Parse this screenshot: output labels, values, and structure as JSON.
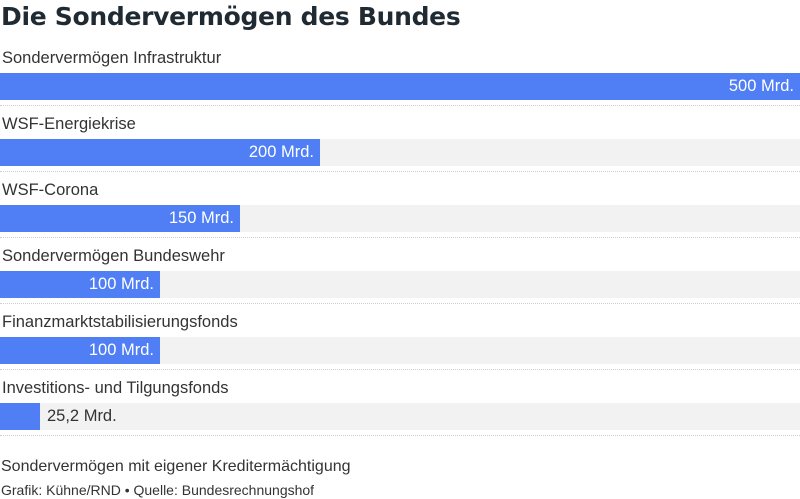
{
  "chart_data": {
    "type": "bar",
    "orientation": "horizontal",
    "title": "Die Sondervermögen des Bundes",
    "categories": [
      "Sondervermögen Infrastruktur",
      "WSF-Energiekrise",
      "WSF-Corona",
      "Sondervermögen Bundeswehr",
      "Finanzmarktstabilisierungsfonds",
      "Investitions- und Tilgungsfonds"
    ],
    "values": [
      500,
      200,
      150,
      100,
      100,
      25.2
    ],
    "value_labels": [
      "500 Mrd.",
      "200 Mrd.",
      "150 Mrd.",
      "100 Mrd.",
      "100 Mrd.",
      "25,2 Mrd."
    ],
    "xlim": [
      0,
      500
    ],
    "grid": false,
    "legend": "none",
    "bar_color": "#4f7ef5",
    "track_color": "#f2f2f2",
    "note": "Sondervermögen mit eigener Kreditermächtigung",
    "source": "Grafik: Kühne/RND • Quelle: Bundesrechnungshof"
  }
}
